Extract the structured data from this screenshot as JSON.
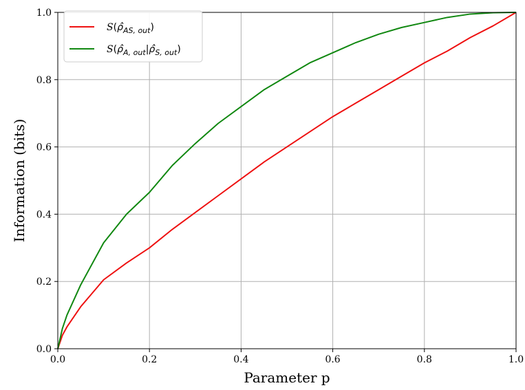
{
  "chart_data": {
    "type": "line",
    "title": "",
    "xlabel": "Parameter p",
    "ylabel": "Information (bits)",
    "xlim": [
      0.0,
      1.0
    ],
    "ylim": [
      0.0,
      1.0
    ],
    "xticks": [
      "0.0",
      "0.2",
      "0.4",
      "0.6",
      "0.8",
      "1.0"
    ],
    "yticks": [
      "0.0",
      "0.2",
      "0.4",
      "0.6",
      "0.8",
      "1.0"
    ],
    "grid": true,
    "legend_position": "top-left",
    "series": [
      {
        "name": "S(ρ̂AS, out)",
        "color": "#ee1111",
        "x": [
          0.0,
          0.01,
          0.02,
          0.05,
          0.1,
          0.15,
          0.2,
          0.25,
          0.3,
          0.35,
          0.4,
          0.45,
          0.5,
          0.55,
          0.6,
          0.65,
          0.7,
          0.75,
          0.8,
          0.85,
          0.9,
          0.95,
          1.0
        ],
        "y": [
          0.0,
          0.04,
          0.065,
          0.125,
          0.205,
          0.255,
          0.3,
          0.355,
          0.405,
          0.455,
          0.505,
          0.555,
          0.6,
          0.645,
          0.69,
          0.73,
          0.77,
          0.81,
          0.85,
          0.885,
          0.925,
          0.96,
          1.0
        ]
      },
      {
        "name": "S(ρ̂A, out|ρ̂S, out)",
        "color": "#118811",
        "x": [
          0.0,
          0.01,
          0.02,
          0.05,
          0.1,
          0.15,
          0.2,
          0.25,
          0.3,
          0.35,
          0.4,
          0.45,
          0.5,
          0.55,
          0.6,
          0.65,
          0.7,
          0.75,
          0.8,
          0.85,
          0.9,
          0.95,
          1.0
        ],
        "y": [
          0.0,
          0.06,
          0.1,
          0.19,
          0.315,
          0.4,
          0.465,
          0.545,
          0.61,
          0.67,
          0.72,
          0.77,
          0.81,
          0.85,
          0.88,
          0.91,
          0.935,
          0.955,
          0.97,
          0.985,
          0.995,
          0.999,
          1.0
        ]
      }
    ]
  },
  "legend": {
    "items": [
      {
        "color": "#ee1111"
      },
      {
        "color": "#118811"
      }
    ]
  }
}
